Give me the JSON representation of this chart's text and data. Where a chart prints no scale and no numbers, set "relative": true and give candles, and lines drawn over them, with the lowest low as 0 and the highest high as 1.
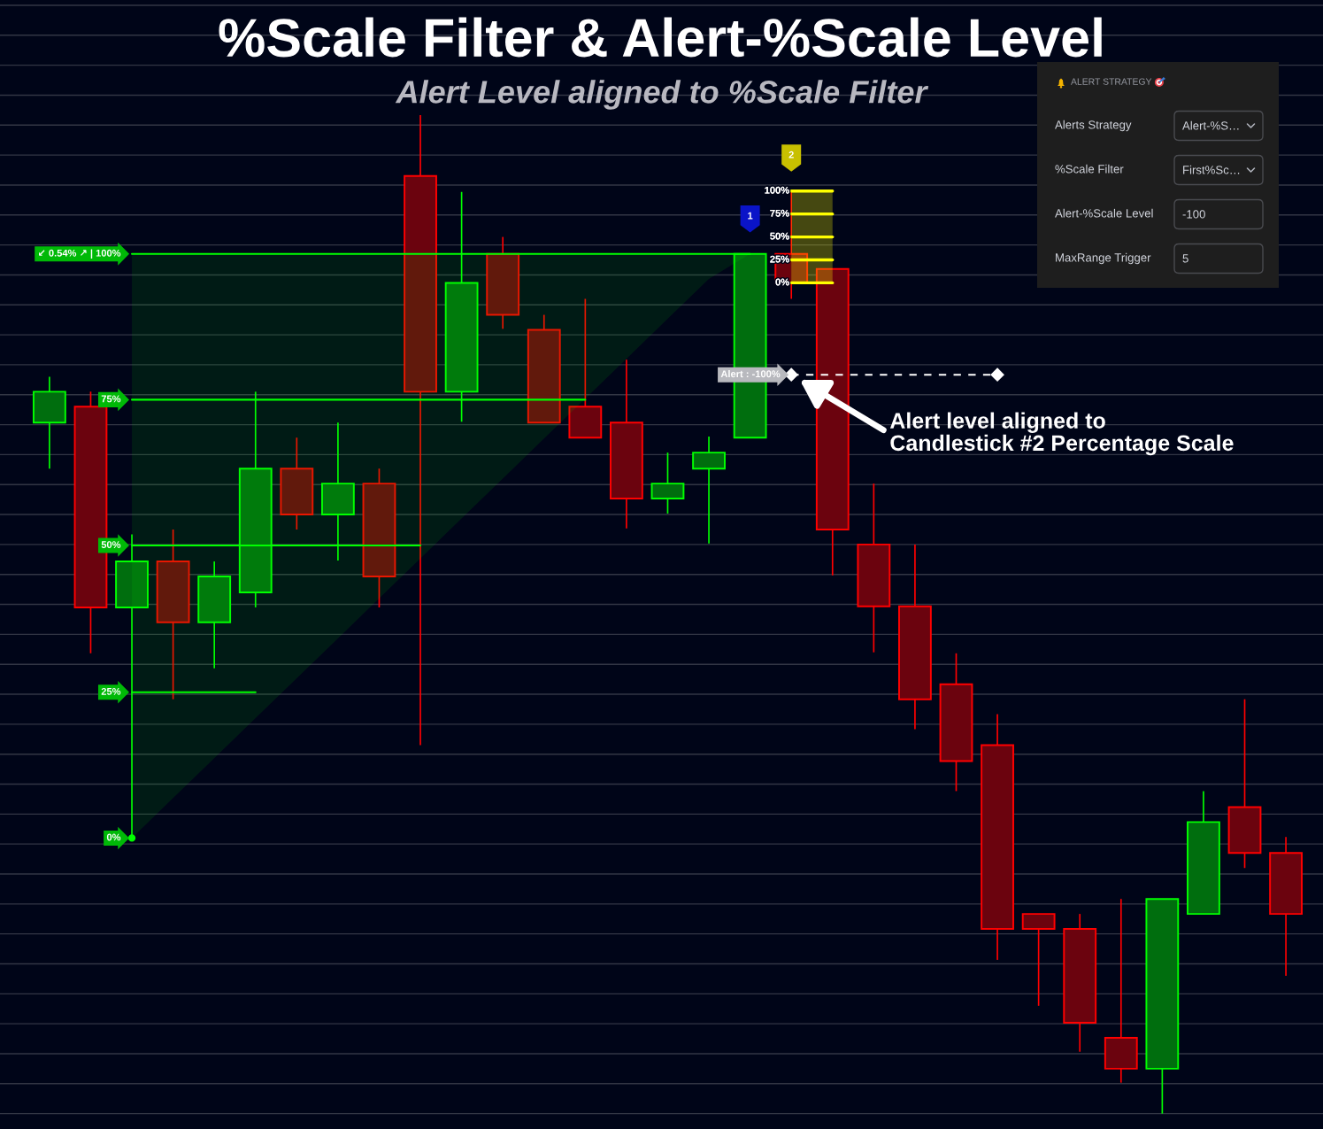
{
  "chart_data": [
    {
      "type": "candlestick",
      "title": "%Scale Filter & Alert-%Scale Level",
      "subtitle": "Alert Level aligned to %Scale Filter",
      "relative": true,
      "grid": "y",
      "categories": [
        null,
        null,
        null,
        null,
        null,
        null,
        null,
        null,
        null,
        null,
        null,
        null,
        null,
        null,
        null,
        null,
        null,
        null,
        null,
        null,
        null,
        null,
        null,
        null,
        null,
        null,
        null,
        null,
        null,
        null,
        null
      ],
      "ohlc": [
        [
          0.692,
          0.738,
          0.646,
          0.723
        ],
        [
          0.708,
          0.723,
          0.461,
          0.507
        ],
        [
          0.507,
          0.58,
          0.276,
          0.553
        ],
        [
          0.553,
          0.585,
          0.415,
          0.492
        ],
        [
          0.492,
          0.553,
          0.446,
          0.538
        ],
        [
          0.522,
          0.723,
          0.507,
          0.646
        ],
        [
          0.646,
          0.677,
          0.585,
          0.6
        ],
        [
          0.6,
          0.692,
          0.554,
          0.631
        ],
        [
          0.631,
          0.646,
          0.507,
          0.538
        ],
        [
          0.939,
          1.0,
          0.369,
          0.723
        ],
        [
          0.723,
          0.923,
          0.693,
          0.832
        ],
        [
          0.861,
          0.878,
          0.786,
          0.8
        ],
        [
          0.785,
          0.8,
          0.692,
          0.692
        ],
        [
          0.708,
          0.816,
          0.677,
          0.677
        ],
        [
          0.692,
          0.755,
          0.586,
          0.616
        ],
        [
          0.616,
          0.662,
          0.601,
          0.631
        ],
        [
          0.646,
          0.678,
          0.571,
          0.662
        ],
        [
          0.677,
          0.861,
          0.677,
          0.861
        ],
        [
          0.861,
          0.924,
          0.816,
          0.832
        ],
        [
          0.846,
          0.846,
          0.539,
          0.585
        ],
        [
          0.57,
          0.631,
          0.462,
          0.508
        ],
        [
          0.508,
          0.57,
          0.385,
          0.415
        ],
        [
          0.43,
          0.461,
          0.323,
          0.353
        ],
        [
          0.369,
          0.4,
          0.154,
          0.185
        ],
        [
          0.2,
          0.2,
          0.108,
          0.185
        ],
        [
          0.185,
          0.2,
          0.062,
          0.091
        ],
        [
          0.076,
          0.215,
          0.031,
          0.045
        ],
        [
          0.045,
          0.215,
          0.0,
          0.215
        ],
        [
          0.2,
          0.323,
          0.2,
          0.292
        ],
        [
          0.307,
          0.415,
          0.246,
          0.261
        ],
        [
          0.261,
          0.277,
          0.138,
          0.2
        ]
      ],
      "colors": [
        "#00ff00",
        "#ff0000",
        "#00ff00",
        "#ff0000",
        "#00ff00",
        "#00ff00",
        "#ff0000",
        "#00ff00",
        "#ff0000",
        "#ff0000",
        "#00ff00",
        "#ff0000",
        "#ff0000",
        "#ff0000",
        "#ff0000",
        "#00ff00",
        "#00ff00",
        "#00ff00",
        "#ff0000",
        "#ff0000",
        "#ff0000",
        "#ff0000",
        "#ff0000",
        "#ff0000",
        "#ff0000",
        "#ff0000",
        "#ff0000",
        "#00ff00",
        "#00ff00",
        "#ff0000",
        "#ff0000"
      ],
      "series": [
        {
          "type": "line",
          "name": "↙ 0.54% ↗ | 100%",
          "color": "#00ff00",
          "values": [
            null,
            null,
            0.861,
            0.861,
            0.861,
            0.861,
            0.861,
            0.861,
            0.861,
            0.861,
            0.861,
            0.861,
            0.861,
            0.861,
            0.861,
            0.861,
            0.861,
            0.861,
            null,
            null,
            null,
            null,
            null,
            null,
            null,
            null,
            null,
            null,
            null,
            null,
            null
          ],
          "lower": [
            null,
            null,
            0.276,
            0.316,
            0.356,
            0.396,
            0.436,
            0.476,
            0.516,
            0.556,
            0.596,
            0.636,
            0.676,
            0.716,
            0.756,
            0.796,
            0.836,
            0.861,
            null,
            null,
            null,
            null,
            null,
            null,
            null,
            null,
            null,
            null,
            null,
            null,
            null
          ],
          "upper": [
            null,
            null,
            0.861,
            0.861,
            0.861,
            0.861,
            0.861,
            0.861,
            0.861,
            0.861,
            0.861,
            0.861,
            0.861,
            0.861,
            0.861,
            0.861,
            0.861,
            0.861,
            null,
            null,
            null,
            null,
            null,
            null,
            null,
            null,
            null,
            null,
            null,
            null,
            null
          ]
        },
        {
          "type": "line",
          "name": "75%",
          "color": "#00ff00",
          "values": [
            null,
            null,
            0.715,
            0.715,
            0.715,
            0.715,
            0.715,
            0.715,
            0.715,
            0.715,
            0.715,
            0.715,
            0.715,
            0.715,
            null,
            null,
            null,
            null,
            null,
            null,
            null,
            null,
            null,
            null,
            null,
            null,
            null,
            null,
            null,
            null,
            null
          ]
        },
        {
          "type": "line",
          "name": "50%",
          "color": "#00ff00",
          "values": [
            null,
            null,
            0.569,
            0.569,
            0.569,
            0.569,
            0.569,
            0.569,
            0.569,
            0.569,
            null,
            null,
            null,
            null,
            null,
            null,
            null,
            null,
            null,
            null,
            null,
            null,
            null,
            null,
            null,
            null,
            null,
            null,
            null,
            null,
            null
          ]
        },
        {
          "type": "line",
          "name": "25%",
          "color": "#00ff00",
          "values": [
            null,
            null,
            0.422,
            0.422,
            0.422,
            0.422,
            null,
            null,
            null,
            null,
            null,
            null,
            null,
            null,
            null,
            null,
            null,
            null,
            null,
            null,
            null,
            null,
            null,
            null,
            null,
            null,
            null,
            null,
            null,
            null,
            null
          ]
        },
        {
          "type": "line",
          "name": "0%",
          "color": "#00ff00",
          "marker": "circle",
          "values": [
            null,
            null,
            0.276,
            null,
            null,
            null,
            null,
            null,
            null,
            null,
            null,
            null,
            null,
            null,
            null,
            null,
            null,
            null,
            null,
            null,
            null,
            null,
            null,
            null,
            null,
            null,
            null,
            null,
            null,
            null,
            null
          ]
        },
        {
          "type": "line",
          "name": "100%",
          "color": "#ffff00",
          "values": [
            null,
            null,
            null,
            null,
            null,
            null,
            null,
            null,
            null,
            null,
            null,
            null,
            null,
            null,
            null,
            null,
            null,
            null,
            0.924,
            0.924,
            null,
            null,
            null,
            null,
            null,
            null,
            null,
            null,
            null,
            null,
            null
          ],
          "lower": [
            null,
            null,
            null,
            null,
            null,
            null,
            null,
            null,
            null,
            null,
            null,
            null,
            null,
            null,
            null,
            null,
            null,
            null,
            0.832,
            0.832,
            null,
            null,
            null,
            null,
            null,
            null,
            null,
            null,
            null,
            null,
            null
          ],
          "upper": [
            null,
            null,
            null,
            null,
            null,
            null,
            null,
            null,
            null,
            null,
            null,
            null,
            null,
            null,
            null,
            null,
            null,
            null,
            0.924,
            0.924,
            null,
            null,
            null,
            null,
            null,
            null,
            null,
            null,
            null,
            null,
            null
          ]
        },
        {
          "type": "line",
          "name": "75%",
          "color": "#ffff00",
          "values": [
            null,
            null,
            null,
            null,
            null,
            null,
            null,
            null,
            null,
            null,
            null,
            null,
            null,
            null,
            null,
            null,
            null,
            null,
            0.901,
            0.901,
            null,
            null,
            null,
            null,
            null,
            null,
            null,
            null,
            null,
            null,
            null
          ]
        },
        {
          "type": "line",
          "name": "50%",
          "color": "#ffff00",
          "values": [
            null,
            null,
            null,
            null,
            null,
            null,
            null,
            null,
            null,
            null,
            null,
            null,
            null,
            null,
            null,
            null,
            null,
            null,
            0.878,
            0.878,
            null,
            null,
            null,
            null,
            null,
            null,
            null,
            null,
            null,
            null,
            null
          ]
        },
        {
          "type": "line",
          "name": "25%",
          "color": "#ffff00",
          "values": [
            null,
            null,
            null,
            null,
            null,
            null,
            null,
            null,
            null,
            null,
            null,
            null,
            null,
            null,
            null,
            null,
            null,
            null,
            0.855,
            0.855,
            null,
            null,
            null,
            null,
            null,
            null,
            null,
            null,
            null,
            null,
            null
          ]
        },
        {
          "type": "line",
          "name": "0%",
          "color": "#ffff00",
          "values": [
            null,
            null,
            null,
            null,
            null,
            null,
            null,
            null,
            null,
            null,
            null,
            null,
            null,
            null,
            null,
            null,
            null,
            null,
            0.832,
            0.832,
            null,
            null,
            null,
            null,
            null,
            null,
            null,
            null,
            null,
            null,
            null
          ]
        },
        {
          "type": "scatter",
          "name": "1",
          "color": "#0a14c8",
          "marker": "square",
          "values": [
            null,
            null,
            null,
            null,
            null,
            null,
            null,
            null,
            null,
            null,
            null,
            null,
            null,
            null,
            null,
            null,
            null,
            0.896,
            null,
            null,
            null,
            null,
            null,
            null,
            null,
            null,
            null,
            null,
            null,
            null,
            null
          ]
        },
        {
          "type": "scatter",
          "name": "2",
          "color": "#c8c000",
          "marker": "square",
          "values": [
            null,
            null,
            null,
            null,
            null,
            null,
            null,
            null,
            null,
            null,
            null,
            null,
            null,
            null,
            null,
            null,
            null,
            null,
            0.957,
            null,
            null,
            null,
            null,
            null,
            null,
            null,
            null,
            null,
            null,
            null,
            null
          ]
        },
        {
          "type": "scatter",
          "color": "#ffffff",
          "marker": "diamond",
          "values": [
            null,
            null,
            null,
            null,
            null,
            null,
            null,
            null,
            null,
            null,
            null,
            null,
            null,
            null,
            null,
            null,
            null,
            null,
            0.74,
            null,
            null,
            null,
            null,
            0.74,
            null,
            null,
            null,
            null,
            null,
            null,
            null
          ]
        },
        {
          "type": "line",
          "name": "Alert : -100%",
          "color": "#ffffff",
          "line_style": "dashed",
          "values": [
            null,
            null,
            null,
            null,
            null,
            null,
            null,
            null,
            null,
            null,
            null,
            null,
            null,
            null,
            null,
            null,
            null,
            null,
            0.74,
            0.74,
            0.74,
            0.74,
            0.74,
            0.74,
            null,
            null,
            null,
            null,
            null,
            null,
            null
          ]
        }
      ],
      "annotations": [
        "Alert level aligned to\nCandlestick #2 Percentage Scale"
      ]
    },
    {
      "type": "other",
      "title": "ALERT STRATEGY",
      "annotations": [
        "Alerts Strategy",
        "Alert-%S…",
        "%Scale Filter",
        "First%Sc…",
        "Alert-%Scale Level",
        "-100",
        "MaxRange Trigger",
        "5"
      ]
    }
  ]
}
